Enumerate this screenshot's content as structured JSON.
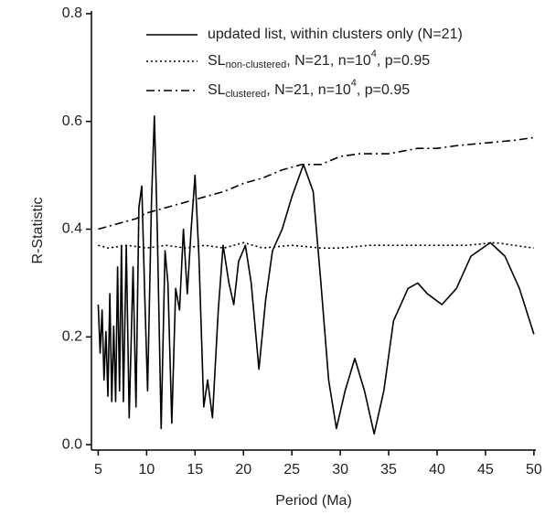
{
  "chart_data": {
    "type": "line",
    "x_label": "Period (Ma)",
    "y_label": "R-Statistic",
    "xlim": [
      4.3,
      50.2
    ],
    "ylim": [
      -0.01,
      0.805
    ],
    "xticks": [
      5,
      10,
      15,
      20,
      25,
      30,
      35,
      40,
      45,
      50
    ],
    "yticks": [
      {
        "value": 0,
        "label": "0.0"
      },
      {
        "value": 0.2,
        "label": "0.2"
      },
      {
        "value": 0.4,
        "label": "0.4"
      },
      {
        "value": 0.6,
        "label": "0.6"
      },
      {
        "value": 0.8,
        "label": "0.8"
      }
    ],
    "legend": "upper right",
    "series": [
      {
        "name": [
          "updated list, within clusters only (N=21)"
        ],
        "name_styles": [
          "normal"
        ],
        "color": "#000000",
        "dash": "solid",
        "x": [
          5.0,
          5.2,
          5.4,
          5.6,
          5.8,
          6.0,
          6.2,
          6.4,
          6.6,
          6.8,
          7.0,
          7.2,
          7.4,
          7.6,
          7.9,
          8.2,
          8.6,
          8.9,
          9.2,
          9.5,
          9.8,
          10.1,
          10.5,
          10.8,
          11.1,
          11.5,
          11.9,
          12.2,
          12.6,
          13.0,
          13.4,
          13.8,
          14.2,
          14.6,
          15.0,
          15.4,
          15.9,
          16.3,
          16.8,
          17.4,
          17.9,
          18.5,
          19.0,
          19.5,
          20.2,
          20.8,
          21.6,
          22.3,
          23.0,
          24.0,
          25.0,
          26.2,
          27.2,
          28.0,
          28.8,
          29.6,
          30.5,
          31.5,
          32.5,
          33.5,
          34.5,
          35.5,
          37.0,
          38.0,
          39.0,
          40.5,
          42.0,
          43.5,
          45.5,
          47.0,
          48.5,
          50.0
        ],
        "values": [
          0.26,
          0.17,
          0.25,
          0.12,
          0.21,
          0.09,
          0.28,
          0.08,
          0.22,
          0.08,
          0.33,
          0.1,
          0.37,
          0.08,
          0.37,
          0.05,
          0.33,
          0.07,
          0.44,
          0.48,
          0.28,
          0.1,
          0.45,
          0.61,
          0.4,
          0.03,
          0.36,
          0.3,
          0.04,
          0.29,
          0.25,
          0.4,
          0.28,
          0.4,
          0.5,
          0.35,
          0.07,
          0.12,
          0.05,
          0.25,
          0.37,
          0.3,
          0.26,
          0.34,
          0.37,
          0.3,
          0.14,
          0.27,
          0.36,
          0.4,
          0.46,
          0.52,
          0.47,
          0.3,
          0.12,
          0.03,
          0.1,
          0.16,
          0.1,
          0.02,
          0.1,
          0.23,
          0.29,
          0.3,
          0.28,
          0.26,
          0.29,
          0.35,
          0.375,
          0.35,
          0.29,
          0.205
        ]
      },
      {
        "name": [
          "SL",
          "non-clustered",
          ", N=21, n=10",
          "4",
          ", p=0.95"
        ],
        "name_styles": [
          "normal",
          "sub",
          "normal",
          "sup",
          "normal"
        ],
        "color": "#000000",
        "dash": "dotted",
        "x": [
          5,
          6,
          8,
          10,
          12,
          14,
          16,
          18,
          20,
          22,
          25,
          28,
          30,
          33,
          36,
          40,
          43,
          46,
          50
        ],
        "values": [
          0.37,
          0.365,
          0.37,
          0.365,
          0.37,
          0.365,
          0.37,
          0.365,
          0.375,
          0.365,
          0.37,
          0.365,
          0.365,
          0.37,
          0.37,
          0.37,
          0.37,
          0.375,
          0.365
        ]
      },
      {
        "name": [
          "SL",
          "clustered",
          ", N=21, n=10",
          "4",
          ", p=0.95"
        ],
        "name_styles": [
          "normal",
          "sub",
          "normal",
          "sup",
          "normal"
        ],
        "color": "#000000",
        "dash": "dashdot",
        "x": [
          5,
          7,
          9,
          10,
          12,
          15,
          18,
          20,
          22,
          24,
          26,
          28,
          30,
          32,
          35,
          38,
          40,
          42,
          45,
          48,
          50
        ],
        "values": [
          0.4,
          0.41,
          0.42,
          0.43,
          0.44,
          0.455,
          0.47,
          0.485,
          0.495,
          0.51,
          0.52,
          0.52,
          0.535,
          0.54,
          0.54,
          0.55,
          0.55,
          0.555,
          0.56,
          0.565,
          0.57
        ]
      }
    ]
  }
}
